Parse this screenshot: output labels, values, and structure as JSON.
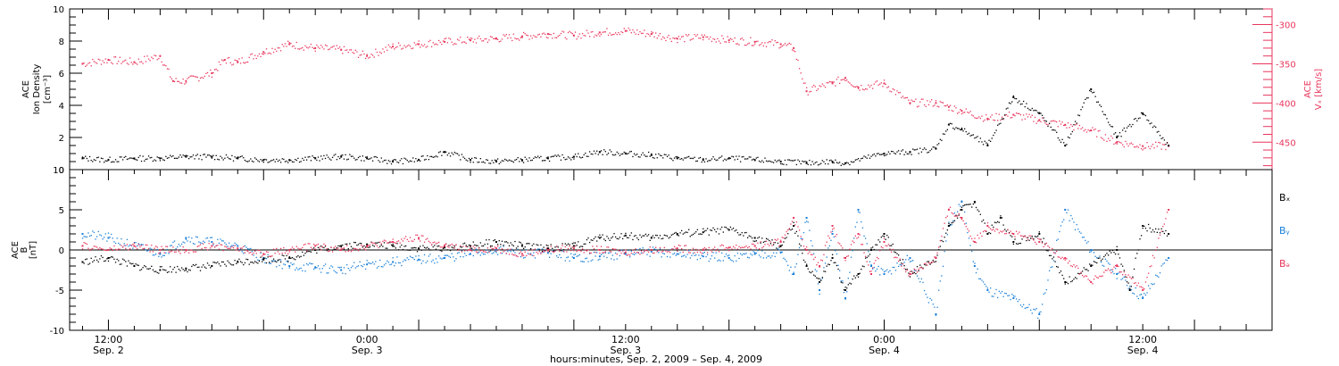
{
  "chart_data": [
    {
      "type": "scatter",
      "panel": "density",
      "ylabel_lines": [
        "ACE",
        "Ion Density",
        "[cm⁻³]"
      ],
      "y2label_lines": [
        "ACE",
        "Vₓ [km/s]"
      ],
      "ylim": [
        0,
        10
      ],
      "yticks": [
        "0",
        "2",
        "4",
        "6",
        "8",
        "10"
      ],
      "y2lim": [
        -280,
        -485
      ],
      "y2ticks": [
        "-300",
        "-350",
        "-400",
        "-450"
      ],
      "colors": {
        "density": "#000000",
        "vx": "#e8365c"
      },
      "series": [
        {
          "key": "density",
          "x": [
            -2,
            0,
            2,
            4,
            6,
            8,
            10,
            12,
            14,
            16,
            18,
            20,
            22,
            24,
            26,
            28,
            30,
            32,
            34,
            36,
            38,
            40,
            42,
            44,
            46,
            48,
            50,
            52,
            54,
            56,
            57,
            60,
            62,
            64,
            65,
            66,
            68,
            70,
            72,
            74,
            76,
            78,
            80,
            82
          ],
          "values": [
            0.7,
            0.6,
            0.7,
            0.7,
            0.8,
            0.8,
            0.7,
            0.6,
            0.6,
            0.7,
            0.8,
            0.7,
            0.5,
            0.6,
            1.1,
            0.6,
            0.5,
            0.6,
            0.7,
            0.8,
            1.1,
            1.0,
            0.9,
            0.7,
            0.6,
            0.7,
            0.6,
            0.5,
            0.4,
            0.5,
            0.4,
            1.0,
            1.1,
            1.3,
            2.8,
            2.5,
            1.5,
            4.5,
            3.5,
            1.5,
            5.0,
            2.0,
            3.5,
            1.5
          ]
        },
        {
          "key": "vx",
          "x": [
            -2,
            0,
            2,
            4,
            5,
            6,
            8,
            9,
            10,
            12,
            14,
            16,
            18,
            20,
            22,
            24,
            26,
            28,
            30,
            32,
            34,
            36,
            38,
            40,
            42,
            44,
            46,
            48,
            50,
            52,
            53,
            54,
            56,
            57,
            58,
            60,
            62,
            64,
            65,
            66,
            68,
            70,
            72,
            74,
            76,
            78,
            80,
            82
          ],
          "values": [
            -350,
            -345,
            -348,
            -340,
            -372,
            -372,
            -362,
            -345,
            -348,
            -335,
            -325,
            -330,
            -332,
            -340,
            -328,
            -325,
            -322,
            -320,
            -318,
            -315,
            -312,
            -314,
            -310,
            -308,
            -312,
            -318,
            -316,
            -320,
            -322,
            -325,
            -330,
            -385,
            -375,
            -368,
            -380,
            -375,
            -400,
            -400,
            -405,
            -410,
            -420,
            -415,
            -422,
            -428,
            -435,
            -450,
            -455,
            -455
          ]
        }
      ]
    },
    {
      "type": "scatter",
      "panel": "magnetic-field",
      "ylabel_lines": [
        "ACE",
        "B",
        "[nT]"
      ],
      "ylim": [
        -10,
        10
      ],
      "yticks": [
        "-10",
        "-5",
        "0",
        "5",
        "10"
      ],
      "legend": [
        "Bₓ",
        "Bᵧ",
        "Bₔ"
      ],
      "colors": {
        "Bx": "#000000",
        "By": "#1a7fd8",
        "Bz": "#e8365c"
      },
      "series": [
        {
          "key": "Bx",
          "x": [
            -2,
            0,
            2,
            4,
            6,
            8,
            10,
            12,
            14,
            16,
            18,
            20,
            22,
            24,
            26,
            28,
            30,
            32,
            34,
            36,
            38,
            40,
            42,
            44,
            46,
            48,
            50,
            52,
            53,
            54,
            55,
            56,
            57,
            58,
            59,
            60,
            62,
            64,
            65,
            66,
            67,
            68,
            69,
            70,
            72,
            74,
            76,
            78,
            79,
            80,
            82
          ],
          "values": [
            -1.5,
            -1,
            -2,
            -2.5,
            -2.3,
            -2,
            -1.5,
            -1.2,
            -1,
            0,
            0.5,
            0.7,
            0.5,
            0.2,
            0.3,
            0.5,
            1,
            0.5,
            0.2,
            0.5,
            1.5,
            1.8,
            1.5,
            2,
            2.2,
            2.5,
            1.5,
            0.5,
            3,
            -2,
            -4,
            -1,
            -5,
            -3,
            0,
            2,
            -3,
            -1,
            3,
            5,
            6,
            2,
            4,
            1,
            2,
            -4,
            -2,
            0,
            -5,
            3,
            2
          ]
        },
        {
          "key": "By",
          "x": [
            -2,
            0,
            2,
            4,
            6,
            8,
            10,
            12,
            14,
            16,
            18,
            20,
            22,
            24,
            26,
            28,
            30,
            32,
            34,
            36,
            38,
            40,
            42,
            44,
            46,
            48,
            50,
            52,
            53,
            54,
            55,
            56,
            57,
            58,
            59,
            60,
            62,
            64,
            65,
            66,
            67,
            68,
            70,
            72,
            74,
            76,
            78,
            80,
            82
          ],
          "values": [
            2,
            1.5,
            0.5,
            -0.5,
            1.5,
            1,
            0.5,
            -1,
            -2,
            -2.2,
            -2.5,
            -1.8,
            -1.5,
            -1.2,
            -1,
            -0.5,
            0,
            -0.5,
            -0.3,
            -1,
            -0.8,
            -0.5,
            -0.2,
            -0.5,
            -0.8,
            -1,
            -0.5,
            -0.3,
            -3,
            4,
            -5,
            2,
            -6,
            5,
            -2,
            -3,
            -1,
            -8,
            3,
            6,
            -2,
            -5,
            -6,
            -8,
            5,
            0,
            -3,
            -6,
            -1
          ]
        },
        {
          "key": "Bz",
          "x": [
            -2,
            0,
            2,
            4,
            6,
            8,
            10,
            12,
            14,
            16,
            18,
            20,
            22,
            24,
            26,
            28,
            30,
            32,
            34,
            36,
            38,
            40,
            42,
            44,
            46,
            48,
            50,
            52,
            53,
            54,
            55,
            56,
            57,
            58,
            59,
            60,
            62,
            64,
            65,
            66,
            67,
            68,
            70,
            72,
            74,
            76,
            78,
            80,
            82
          ],
          "values": [
            0.5,
            0,
            0.5,
            0,
            0,
            0.5,
            0.2,
            -0.5,
            0,
            0.5,
            0,
            0.5,
            1,
            1.5,
            0.5,
            0,
            0.2,
            -0.5,
            0,
            0.2,
            0,
            -0.3,
            0,
            0.2,
            0,
            0.3,
            0.5,
            1,
            4,
            0,
            -2,
            3,
            -1,
            2,
            -3,
            1,
            -3,
            -1,
            5,
            4,
            1,
            3,
            2,
            1,
            -1,
            -4,
            -2,
            -5,
            5
          ]
        }
      ]
    }
  ],
  "time_axis": {
    "xlim": [
      -3,
      90
    ],
    "ticks": [
      {
        "x": 0,
        "time": "12:00",
        "date": "Sep. 2"
      },
      {
        "x": 20,
        "time": "0:00",
        "date": "Sep. 3"
      },
      {
        "x": 40,
        "time": "12:00",
        "date": "Sep. 3"
      },
      {
        "x": 60,
        "time": "0:00",
        "date": "Sep. 4"
      },
      {
        "x": 80,
        "time": "12:00",
        "date": "Sep. 4"
      }
    ],
    "xlabel": "hours:minutes, Sep.  2, 2009 – Sep.  4, 2009"
  },
  "labels": {
    "top_ylabel_1": "ACE",
    "top_ylabel_2": "Ion Density",
    "top_ylabel_3": "[cm⁻³]",
    "top_y2label_1": "ACE",
    "top_y2label_2": "Vₓ [km/s]",
    "bot_ylabel_1": "ACE",
    "bot_ylabel_2": "B",
    "bot_ylabel_3": "[nT]",
    "legend_bx": "Bₓ",
    "legend_by": "Bᵧ",
    "legend_bz": "Bₔ"
  }
}
